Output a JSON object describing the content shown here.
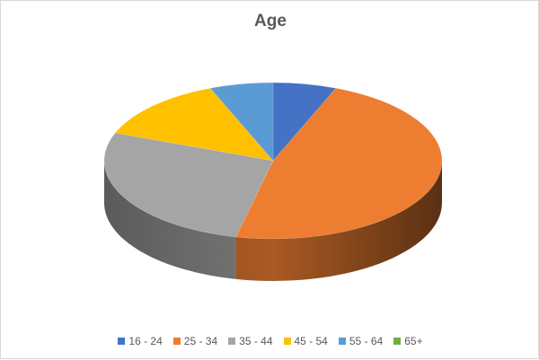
{
  "chart_data": {
    "type": "pie",
    "title": "Age",
    "categories": [
      "16 - 24",
      "25 - 34",
      "35 - 44",
      "45 - 54",
      "55 - 64",
      "65+"
    ],
    "values": [
      6,
      47,
      27,
      13,
      6,
      0
    ],
    "colors": [
      "#4472C4",
      "#ED7D31",
      "#A5A5A5",
      "#FFC000",
      "#5B9BD5",
      "#70AD47"
    ],
    "legend_position": "bottom",
    "style": "3d"
  }
}
